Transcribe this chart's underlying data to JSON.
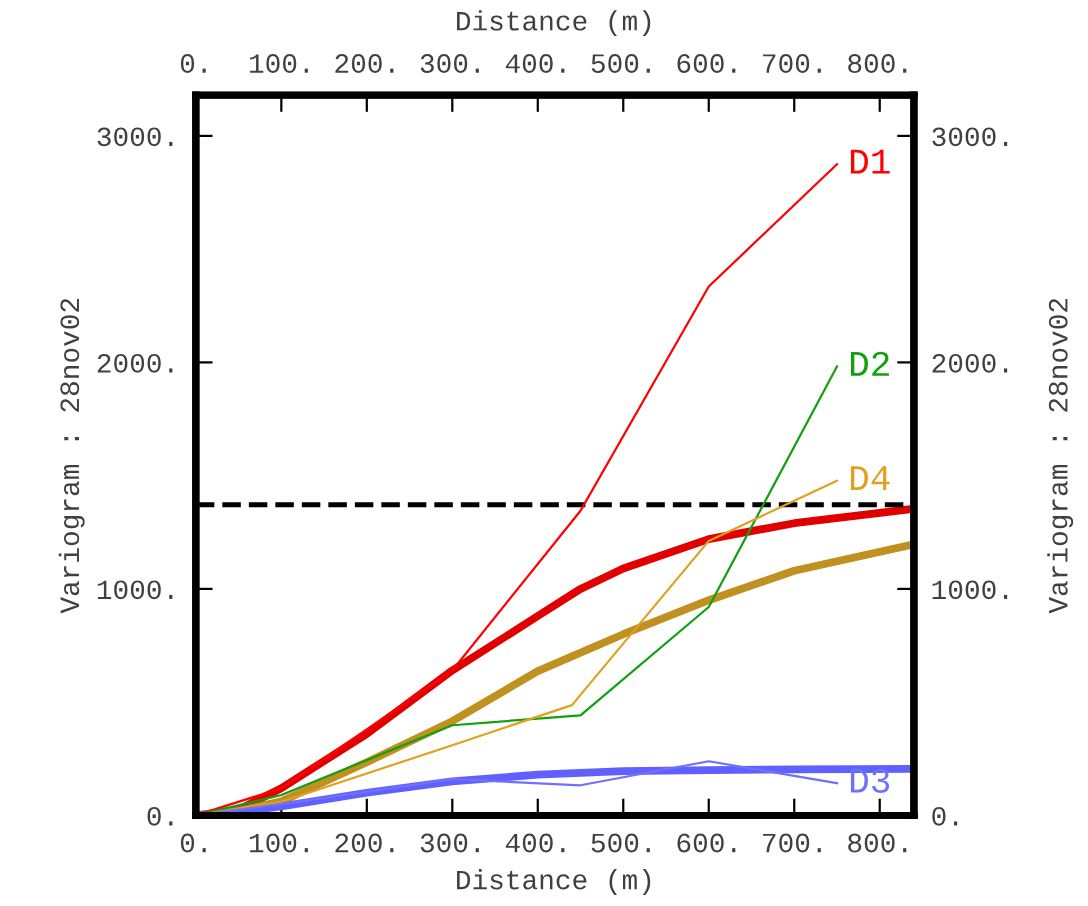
{
  "chart_data": {
    "type": "line",
    "xlabel": "Distance (m)",
    "ylabel": "Variogram : 28nov02",
    "x2label": "Distance (m)",
    "y2label": "Variogram : 28nov02",
    "xlim": [
      0,
      840
    ],
    "ylim": [
      0,
      3180
    ],
    "x2lim": [
      0,
      840
    ],
    "y2lim": [
      0,
      3180
    ],
    "xticks": [
      {
        "value": 0,
        "label": "0."
      },
      {
        "value": 100,
        "label": "100."
      },
      {
        "value": 200,
        "label": "200."
      },
      {
        "value": 300,
        "label": "300."
      },
      {
        "value": 400,
        "label": "400."
      },
      {
        "value": 500,
        "label": "500."
      },
      {
        "value": 600,
        "label": "600."
      },
      {
        "value": 700,
        "label": "700."
      },
      {
        "value": 800,
        "label": "800."
      }
    ],
    "x2ticks": [
      {
        "value": 0,
        "label": "0."
      },
      {
        "value": 100,
        "label": "100."
      },
      {
        "value": 200,
        "label": "200."
      },
      {
        "value": 300,
        "label": "300."
      },
      {
        "value": 400,
        "label": "400."
      },
      {
        "value": 500,
        "label": "500."
      },
      {
        "value": 600,
        "label": "600."
      },
      {
        "value": 700,
        "label": "700."
      },
      {
        "value": 800,
        "label": "800."
      }
    ],
    "yticks": [
      {
        "value": 0,
        "label": "0."
      },
      {
        "value": 1000,
        "label": "1000."
      },
      {
        "value": 2000,
        "label": "2000."
      },
      {
        "value": 3000,
        "label": "3000."
      }
    ],
    "y2ticks": [
      {
        "value": 0,
        "label": "0."
      },
      {
        "value": 1000,
        "label": "1000."
      },
      {
        "value": 2000,
        "label": "2000."
      },
      {
        "value": 3000,
        "label": "3000."
      }
    ],
    "grid": false,
    "legend": false,
    "marker": "none",
    "line_style": "solid",
    "ref_lines": [
      {
        "axis": "y",
        "value": 1372,
        "color": "#000000",
        "line_style": "dashed"
      }
    ],
    "series": [
      {
        "name": "D1",
        "color": "#ff0000",
        "x": [
          0,
          100,
          300,
          450,
          600,
          750
        ],
        "values": [
          0,
          120,
          640,
          1345,
          2335,
          2875
        ]
      },
      {
        "name": "D2",
        "color": "#10a010",
        "x": [
          0,
          100,
          300,
          450,
          600,
          750
        ],
        "values": [
          0,
          90,
          398,
          442,
          920,
          1982
        ]
      },
      {
        "name": "D4",
        "color": "#e0a020",
        "x": [
          0,
          100,
          300,
          440,
          600,
          750
        ],
        "values": [
          0,
          60,
          310,
          487,
          1212,
          1478
        ]
      },
      {
        "name": "D3",
        "color": "#7070ff",
        "x": [
          0,
          100,
          300,
          450,
          600,
          750
        ],
        "values": [
          0,
          50,
          160,
          133,
          239,
          142
        ]
      },
      {
        "color": "#e00000",
        "x": [
          0,
          50,
          100,
          200,
          300,
          400,
          450,
          500,
          600,
          700,
          840
        ],
        "values": [
          0,
          25,
          120,
          360,
          640,
          880,
          1000,
          1090,
          1220,
          1290,
          1354
        ]
      },
      {
        "color": "#c09020",
        "x": [
          0,
          50,
          100,
          200,
          300,
          400,
          500,
          600,
          700,
          840
        ],
        "values": [
          0,
          20,
          62,
          235,
          416,
          637,
          800,
          950,
          1080,
          1197
        ]
      },
      {
        "color": "#6060ff",
        "x": [
          0,
          50,
          100,
          200,
          300,
          400,
          500,
          600,
          700,
          840
        ],
        "values": [
          0,
          15,
          40,
          100,
          150,
          180,
          195,
          200,
          203,
          205
        ]
      }
    ]
  }
}
